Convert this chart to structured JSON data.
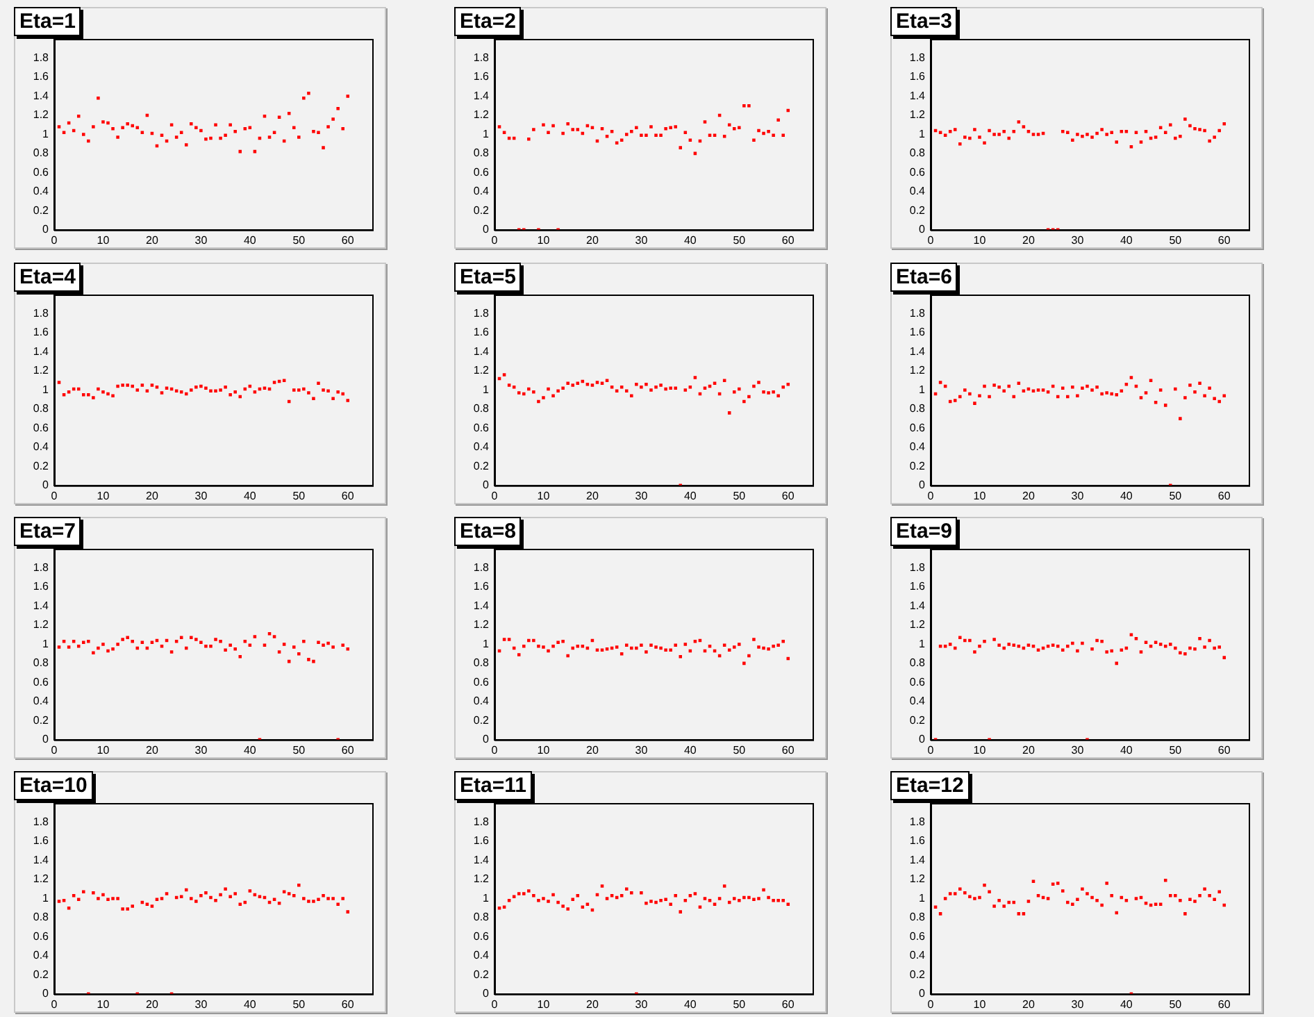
{
  "chart_data": [
    {
      "type": "scatter",
      "title": "Eta=1",
      "color": "#ff0000",
      "marker": "square",
      "grid": false,
      "xlim": [
        0,
        65
      ],
      "ylim": [
        0,
        2
      ],
      "xticks": [
        0,
        10,
        20,
        30,
        40,
        50,
        60
      ],
      "yticks": [
        0,
        0.2,
        0.4,
        0.6,
        0.8,
        1,
        1.2,
        1.4,
        1.6,
        1.8
      ],
      "x": [
        1,
        2,
        3,
        4,
        5,
        6,
        7,
        8,
        9,
        10,
        11,
        12,
        13,
        14,
        15,
        16,
        17,
        18,
        19,
        20,
        21,
        22,
        23,
        24,
        25,
        26,
        27,
        28,
        29,
        30,
        31,
        32,
        33,
        34,
        35,
        36,
        37,
        38,
        39,
        40,
        41,
        42,
        43,
        44,
        45,
        46,
        47,
        48,
        49,
        50,
        51,
        52,
        53,
        54,
        55,
        56,
        57,
        58,
        59,
        60
      ],
      "values": [
        1.08,
        1.02,
        1.12,
        1.04,
        1.19,
        1.0,
        0.93,
        1.08,
        1.38,
        1.13,
        1.12,
        1.06,
        0.97,
        1.07,
        1.11,
        1.09,
        1.07,
        1.02,
        1.2,
        1.01,
        0.88,
        0.99,
        0.93,
        1.1,
        0.97,
        1.02,
        0.89,
        1.11,
        1.07,
        1.04,
        0.95,
        0.96,
        1.1,
        0.96,
        0.99,
        1.1,
        1.03,
        0.82,
        1.06,
        1.07,
        0.82,
        0.96,
        1.19,
        0.97,
        1.02,
        1.18,
        0.93,
        1.22,
        1.07,
        0.97,
        1.38,
        1.43,
        1.03,
        1.02,
        0.86,
        1.08,
        1.16,
        1.27,
        1.06,
        1.4
      ]
    },
    {
      "type": "scatter",
      "title": "Eta=2",
      "color": "#ff0000",
      "marker": "square",
      "grid": false,
      "xlim": [
        0,
        65
      ],
      "ylim": [
        0,
        2
      ],
      "xticks": [
        0,
        10,
        20,
        30,
        40,
        50,
        60
      ],
      "yticks": [
        0,
        0.2,
        0.4,
        0.6,
        0.8,
        1,
        1.2,
        1.4,
        1.6,
        1.8
      ],
      "x": [
        1,
        2,
        3,
        4,
        5,
        6,
        7,
        8,
        9,
        10,
        11,
        12,
        13,
        14,
        15,
        16,
        17,
        18,
        19,
        20,
        21,
        22,
        23,
        24,
        25,
        26,
        27,
        28,
        29,
        30,
        31,
        32,
        33,
        34,
        35,
        36,
        37,
        38,
        39,
        40,
        41,
        42,
        43,
        44,
        45,
        46,
        47,
        48,
        49,
        50,
        51,
        52,
        53,
        54,
        55,
        56,
        57,
        58,
        59,
        60
      ],
      "values": [
        1.08,
        1.02,
        0.96,
        0.96,
        0,
        0,
        0.95,
        1.05,
        0,
        1.1,
        1.02,
        1.09,
        0,
        1.01,
        1.11,
        1.05,
        1.05,
        1.01,
        1.09,
        1.07,
        0.93,
        1.06,
        0.98,
        1.03,
        0.91,
        0.94,
        1.0,
        1.03,
        1.07,
        0.99,
        0.99,
        1.08,
        0.99,
        0.99,
        1.06,
        1.07,
        1.08,
        0.86,
        1.02,
        0.94,
        0.8,
        0.93,
        1.13,
        0.99,
        0.99,
        1.2,
        0.98,
        1.1,
        1.06,
        1.07,
        1.3,
        1.3,
        0.94,
        1.04,
        1.01,
        1.03,
        0.99,
        1.15,
        0.99,
        1.25
      ]
    },
    {
      "type": "scatter",
      "title": "Eta=3",
      "color": "#ff0000",
      "marker": "square",
      "grid": false,
      "xlim": [
        0,
        65
      ],
      "ylim": [
        0,
        2
      ],
      "xticks": [
        0,
        10,
        20,
        30,
        40,
        50,
        60
      ],
      "yticks": [
        0,
        0.2,
        0.4,
        0.6,
        0.8,
        1,
        1.2,
        1.4,
        1.6,
        1.8
      ],
      "x": [
        1,
        2,
        3,
        4,
        5,
        6,
        7,
        8,
        9,
        10,
        11,
        12,
        13,
        14,
        15,
        16,
        17,
        18,
        19,
        20,
        21,
        22,
        23,
        24,
        25,
        26,
        27,
        28,
        29,
        30,
        31,
        32,
        33,
        34,
        35,
        36,
        37,
        38,
        39,
        40,
        41,
        42,
        43,
        44,
        45,
        46,
        47,
        48,
        49,
        50,
        51,
        52,
        53,
        54,
        55,
        56,
        57,
        58,
        59,
        60
      ],
      "values": [
        1.04,
        1.02,
        0.99,
        1.03,
        1.05,
        0.9,
        0.97,
        0.96,
        1.05,
        0.97,
        0.91,
        1.04,
        1.0,
        1.0,
        1.03,
        0.96,
        1.03,
        1.13,
        1.08,
        1.03,
        1.0,
        1.0,
        1.01,
        0,
        0,
        0,
        1.03,
        1.02,
        0.94,
        1.0,
        0.98,
        1.0,
        0.97,
        1.01,
        1.05,
        1.0,
        1.02,
        0.92,
        1.03,
        1.03,
        0.87,
        1.02,
        0.92,
        1.03,
        0.96,
        0.97,
        1.07,
        1.02,
        1.1,
        0.96,
        0.98,
        1.16,
        1.09,
        1.06,
        1.05,
        1.04,
        0.93,
        0.97,
        1.04,
        1.11
      ]
    },
    {
      "type": "scatter",
      "title": "Eta=4",
      "color": "#ff0000",
      "marker": "square",
      "grid": false,
      "xlim": [
        0,
        65
      ],
      "ylim": [
        0,
        2
      ],
      "xticks": [
        0,
        10,
        20,
        30,
        40,
        50,
        60
      ],
      "yticks": [
        0,
        0.2,
        0.4,
        0.6,
        0.8,
        1,
        1.2,
        1.4,
        1.6,
        1.8
      ],
      "x": [
        1,
        2,
        3,
        4,
        5,
        6,
        7,
        8,
        9,
        10,
        11,
        12,
        13,
        14,
        15,
        16,
        17,
        18,
        19,
        20,
        21,
        22,
        23,
        24,
        25,
        26,
        27,
        28,
        29,
        30,
        31,
        32,
        33,
        34,
        35,
        36,
        37,
        38,
        39,
        40,
        41,
        42,
        43,
        44,
        45,
        46,
        47,
        48,
        49,
        50,
        51,
        52,
        53,
        54,
        55,
        56,
        57,
        58,
        59,
        60
      ],
      "values": [
        1.08,
        0.95,
        0.98,
        1.01,
        1.01,
        0.95,
        0.95,
        0.92,
        1.01,
        0.98,
        0.96,
        0.94,
        1.04,
        1.05,
        1.05,
        1.04,
        1.0,
        1.05,
        0.99,
        1.05,
        1.03,
        0.97,
        1.02,
        1.01,
        0.99,
        0.98,
        0.96,
        1.0,
        1.03,
        1.04,
        1.02,
        0.99,
        0.99,
        1.0,
        1.03,
        0.95,
        0.98,
        0.93,
        1.01,
        1.04,
        0.98,
        1.01,
        1.02,
        1.01,
        1.08,
        1.09,
        1.1,
        0.88,
        1.0,
        1.0,
        1.01,
        0.97,
        0.91,
        1.07,
        1.0,
        0.99,
        0.91,
        0.98,
        0.96,
        0.89
      ]
    },
    {
      "type": "scatter",
      "title": "Eta=5",
      "color": "#ff0000",
      "marker": "square",
      "grid": false,
      "xlim": [
        0,
        65
      ],
      "ylim": [
        0,
        2
      ],
      "xticks": [
        0,
        10,
        20,
        30,
        40,
        50,
        60
      ],
      "yticks": [
        0,
        0.2,
        0.4,
        0.6,
        0.8,
        1,
        1.2,
        1.4,
        1.6,
        1.8
      ],
      "x": [
        1,
        2,
        3,
        4,
        5,
        6,
        7,
        8,
        9,
        10,
        11,
        12,
        13,
        14,
        15,
        16,
        17,
        18,
        19,
        20,
        21,
        22,
        23,
        24,
        25,
        26,
        27,
        28,
        29,
        30,
        31,
        32,
        33,
        34,
        35,
        36,
        37,
        38,
        39,
        40,
        41,
        42,
        43,
        44,
        45,
        46,
        47,
        48,
        49,
        50,
        51,
        52,
        53,
        54,
        55,
        56,
        57,
        58,
        59,
        60
      ],
      "values": [
        1.12,
        1.16,
        1.05,
        1.03,
        0.97,
        0.96,
        1.01,
        0.98,
        0.88,
        0.92,
        1.01,
        0.94,
        0.99,
        1.02,
        1.07,
        1.05,
        1.07,
        1.09,
        1.06,
        1.05,
        1.08,
        1.07,
        1.1,
        1.03,
        0.99,
        1.03,
        0.99,
        0.94,
        1.06,
        1.03,
        1.06,
        1.0,
        1.03,
        1.05,
        1.01,
        1.02,
        1.02,
        0,
        1.0,
        1.03,
        1.13,
        0.96,
        1.02,
        1.04,
        1.07,
        0.96,
        1.1,
        0.76,
        0.98,
        1.01,
        0.88,
        0.93,
        1.04,
        1.08,
        0.98,
        0.97,
        0.98,
        0.94,
        1.03,
        1.06
      ]
    },
    {
      "type": "scatter",
      "title": "Eta=6",
      "color": "#ff0000",
      "marker": "square",
      "grid": false,
      "xlim": [
        0,
        65
      ],
      "ylim": [
        0,
        2
      ],
      "xticks": [
        0,
        10,
        20,
        30,
        40,
        50,
        60
      ],
      "yticks": [
        0,
        0.2,
        0.4,
        0.6,
        0.8,
        1,
        1.2,
        1.4,
        1.6,
        1.8
      ],
      "x": [
        1,
        2,
        3,
        4,
        5,
        6,
        7,
        8,
        9,
        10,
        11,
        12,
        13,
        14,
        15,
        16,
        17,
        18,
        19,
        20,
        21,
        22,
        23,
        24,
        25,
        26,
        27,
        28,
        29,
        30,
        31,
        32,
        33,
        34,
        35,
        36,
        37,
        38,
        39,
        40,
        41,
        42,
        43,
        44,
        45,
        46,
        47,
        48,
        49,
        50,
        51,
        52,
        53,
        54,
        55,
        56,
        57,
        58,
        59,
        60
      ],
      "values": [
        0.96,
        1.08,
        1.04,
        0.88,
        0.89,
        0.93,
        1.0,
        0.96,
        0.86,
        0.94,
        1.04,
        0.93,
        1.05,
        1.03,
        0.99,
        1.04,
        0.93,
        1.07,
        0.99,
        1.01,
        0.99,
        1.0,
        1.0,
        0.98,
        1.04,
        0.93,
        1.02,
        0.93,
        1.03,
        0.94,
        1.02,
        1.04,
        1.0,
        1.03,
        0.96,
        0.97,
        0.96,
        0.95,
        0.99,
        1.06,
        1.13,
        1.04,
        0.92,
        0.97,
        1.1,
        0.87,
        1.0,
        0.84,
        0,
        1.01,
        0.7,
        0.92,
        1.05,
        0.98,
        1.07,
        0.94,
        1.02,
        0.91,
        0.88,
        0.94
      ]
    },
    {
      "type": "scatter",
      "title": "Eta=7",
      "color": "#ff0000",
      "marker": "square",
      "grid": false,
      "xlim": [
        0,
        65
      ],
      "ylim": [
        0,
        2
      ],
      "xticks": [
        0,
        10,
        20,
        30,
        40,
        50,
        60
      ],
      "yticks": [
        0,
        0.2,
        0.4,
        0.6,
        0.8,
        1,
        1.2,
        1.4,
        1.6,
        1.8
      ],
      "x": [
        1,
        2,
        3,
        4,
        5,
        6,
        7,
        8,
        9,
        10,
        11,
        12,
        13,
        14,
        15,
        16,
        17,
        18,
        19,
        20,
        21,
        22,
        23,
        24,
        25,
        26,
        27,
        28,
        29,
        30,
        31,
        32,
        33,
        34,
        35,
        36,
        37,
        38,
        39,
        40,
        41,
        42,
        43,
        44,
        45,
        46,
        47,
        48,
        49,
        50,
        51,
        52,
        53,
        54,
        55,
        56,
        57,
        58,
        59,
        60
      ],
      "values": [
        0.97,
        1.03,
        0.97,
        1.03,
        0.98,
        1.02,
        1.03,
        0.91,
        0.96,
        1.0,
        0.93,
        0.95,
        1.0,
        1.05,
        1.07,
        1.03,
        0.96,
        1.02,
        0.96,
        1.02,
        1.04,
        0.98,
        1.04,
        0.92,
        1.03,
        1.07,
        0.96,
        1.07,
        1.05,
        1.02,
        0.98,
        0.98,
        1.05,
        1.03,
        0.94,
        0.99,
        0.95,
        0.87,
        1.03,
        0.99,
        1.08,
        0,
        0.99,
        1.11,
        1.08,
        0.92,
        1.0,
        0.82,
        0.97,
        0.9,
        1.03,
        0.84,
        0.82,
        1.02,
        0.99,
        1.01,
        0.97,
        0,
        0.99,
        0.95
      ]
    },
    {
      "type": "scatter",
      "title": "Eta=8",
      "color": "#ff0000",
      "marker": "square",
      "grid": false,
      "xlim": [
        0,
        65
      ],
      "ylim": [
        0,
        2
      ],
      "xticks": [
        0,
        10,
        20,
        30,
        40,
        50,
        60
      ],
      "yticks": [
        0,
        0.2,
        0.4,
        0.6,
        0.8,
        1,
        1.2,
        1.4,
        1.6,
        1.8
      ],
      "x": [
        1,
        2,
        3,
        4,
        5,
        6,
        7,
        8,
        9,
        10,
        11,
        12,
        13,
        14,
        15,
        16,
        17,
        18,
        19,
        20,
        21,
        22,
        23,
        24,
        25,
        26,
        27,
        28,
        29,
        30,
        31,
        32,
        33,
        34,
        35,
        36,
        37,
        38,
        39,
        40,
        41,
        42,
        43,
        44,
        45,
        46,
        47,
        48,
        49,
        50,
        51,
        52,
        53,
        54,
        55,
        56,
        57,
        58,
        59,
        60
      ],
      "values": [
        0.93,
        1.05,
        1.05,
        0.96,
        0.89,
        0.98,
        1.04,
        1.04,
        0.98,
        0.97,
        0.93,
        0.98,
        1.02,
        1.03,
        0.88,
        0.96,
        0.98,
        0.98,
        0.96,
        1.04,
        0.94,
        0.94,
        0.95,
        0.96,
        0.97,
        0.9,
        0.99,
        0.96,
        0.96,
        0.99,
        0.92,
        0.99,
        0.97,
        0.96,
        0.94,
        0.94,
        0.99,
        0.87,
        1.0,
        0.93,
        1.03,
        1.04,
        0.93,
        0.98,
        0.93,
        0.88,
        0.99,
        0.94,
        0.97,
        1.0,
        0.8,
        0.88,
        1.05,
        0.97,
        0.96,
        0.95,
        0.98,
        0.99,
        1.03,
        0.85
      ]
    },
    {
      "type": "scatter",
      "title": "Eta=9",
      "color": "#ff0000",
      "marker": "square",
      "grid": false,
      "xlim": [
        0,
        65
      ],
      "ylim": [
        0,
        2
      ],
      "xticks": [
        0,
        10,
        20,
        30,
        40,
        50,
        60
      ],
      "yticks": [
        0,
        0.2,
        0.4,
        0.6,
        0.8,
        1,
        1.2,
        1.4,
        1.6,
        1.8
      ],
      "x": [
        1,
        2,
        3,
        4,
        5,
        6,
        7,
        8,
        9,
        10,
        11,
        12,
        13,
        14,
        15,
        16,
        17,
        18,
        19,
        20,
        21,
        22,
        23,
        24,
        25,
        26,
        27,
        28,
        29,
        30,
        31,
        32,
        33,
        34,
        35,
        36,
        37,
        38,
        39,
        40,
        41,
        42,
        43,
        44,
        45,
        46,
        47,
        48,
        49,
        50,
        51,
        52,
        53,
        54,
        55,
        56,
        57,
        58,
        59,
        60
      ],
      "values": [
        0,
        0.98,
        0.98,
        1.0,
        0.96,
        1.07,
        1.04,
        1.04,
        0.92,
        0.98,
        1.03,
        0,
        1.05,
        0.99,
        0.96,
        1.0,
        0.99,
        0.98,
        0.96,
        0.99,
        0.98,
        0.94,
        0.96,
        0.98,
        0.99,
        0.98,
        0.94,
        0.98,
        1.01,
        0.93,
        1.01,
        0,
        0.95,
        1.04,
        1.03,
        0.92,
        0.93,
        0.8,
        0.94,
        0.96,
        1.1,
        1.06,
        0.92,
        1.02,
        0.98,
        1.02,
        1.0,
        0.98,
        1.0,
        0.96,
        0.91,
        0.9,
        0.96,
        0.95,
        1.06,
        0.97,
        1.04,
        0.96,
        0.97,
        0.86
      ]
    },
    {
      "type": "scatter",
      "title": "Eta=10",
      "color": "#ff0000",
      "marker": "square",
      "grid": false,
      "xlim": [
        0,
        65
      ],
      "ylim": [
        0,
        2
      ],
      "xticks": [
        0,
        10,
        20,
        30,
        40,
        50,
        60
      ],
      "yticks": [
        0,
        0.2,
        0.4,
        0.6,
        0.8,
        1,
        1.2,
        1.4,
        1.6,
        1.8
      ],
      "x": [
        1,
        2,
        3,
        4,
        5,
        6,
        7,
        8,
        9,
        10,
        11,
        12,
        13,
        14,
        15,
        16,
        17,
        18,
        19,
        20,
        21,
        22,
        23,
        24,
        25,
        26,
        27,
        28,
        29,
        30,
        31,
        32,
        33,
        34,
        35,
        36,
        37,
        38,
        39,
        40,
        41,
        42,
        43,
        44,
        45,
        46,
        47,
        48,
        49,
        50,
        51,
        52,
        53,
        54,
        55,
        56,
        57,
        58,
        59,
        60
      ],
      "values": [
        0.97,
        0.98,
        0.9,
        1.03,
        0.99,
        1.07,
        0,
        1.06,
        1.0,
        1.04,
        0.99,
        1.0,
        1.0,
        0.89,
        0.89,
        0.92,
        0,
        0.96,
        0.94,
        0.92,
        0.99,
        1.0,
        1.05,
        0,
        1.01,
        1.02,
        1.09,
        1.0,
        0.97,
        1.03,
        1.06,
        1.01,
        0.98,
        1.04,
        1.1,
        1.02,
        1.05,
        0.94,
        0.96,
        1.08,
        1.04,
        1.02,
        1.01,
        0.96,
        0.99,
        0.95,
        1.07,
        1.05,
        1.03,
        1.14,
        1.0,
        0.97,
        0.97,
        0.99,
        1.03,
        1.0,
        1.0,
        0.94,
        1.0,
        0.86
      ]
    },
    {
      "type": "scatter",
      "title": "Eta=11",
      "color": "#ff0000",
      "marker": "square",
      "grid": false,
      "xlim": [
        0,
        65
      ],
      "ylim": [
        0,
        2
      ],
      "xticks": [
        0,
        10,
        20,
        30,
        40,
        50,
        60
      ],
      "yticks": [
        0,
        0.2,
        0.4,
        0.6,
        0.8,
        1,
        1.2,
        1.4,
        1.6,
        1.8
      ],
      "x": [
        1,
        2,
        3,
        4,
        5,
        6,
        7,
        8,
        9,
        10,
        11,
        12,
        13,
        14,
        15,
        16,
        17,
        18,
        19,
        20,
        21,
        22,
        23,
        24,
        25,
        26,
        27,
        28,
        29,
        30,
        31,
        32,
        33,
        34,
        35,
        36,
        37,
        38,
        39,
        40,
        41,
        42,
        43,
        44,
        45,
        46,
        47,
        48,
        49,
        50,
        51,
        52,
        53,
        54,
        55,
        56,
        57,
        58,
        59,
        60
      ],
      "values": [
        0.9,
        0.91,
        0.98,
        1.02,
        1.05,
        1.05,
        1.08,
        1.03,
        0.98,
        1.0,
        0.97,
        1.04,
        0.96,
        0.92,
        0.89,
        0.99,
        1.03,
        0.91,
        0.94,
        0.88,
        1.04,
        1.13,
        1.0,
        1.03,
        1.01,
        1.03,
        1.1,
        1.06,
        0,
        1.06,
        0.95,
        0.97,
        0.96,
        0.98,
        0.99,
        0.94,
        1.03,
        0.86,
        0.98,
        1.03,
        1.05,
        0.91,
        1.0,
        0.98,
        0.94,
        1.0,
        1.13,
        0.96,
        1.0,
        0.98,
        1.01,
        1.01,
        0.99,
        1.0,
        1.09,
        1.01,
        0.98,
        0.98,
        0.98,
        0.94
      ]
    },
    {
      "type": "scatter",
      "title": "Eta=12",
      "color": "#ff0000",
      "marker": "square",
      "grid": false,
      "xlim": [
        0,
        65
      ],
      "ylim": [
        0,
        2
      ],
      "xticks": [
        0,
        10,
        20,
        30,
        40,
        50,
        60
      ],
      "yticks": [
        0,
        0.2,
        0.4,
        0.6,
        0.8,
        1,
        1.2,
        1.4,
        1.6,
        1.8
      ],
      "x": [
        1,
        2,
        3,
        4,
        5,
        6,
        7,
        8,
        9,
        10,
        11,
        12,
        13,
        14,
        15,
        16,
        17,
        18,
        19,
        20,
        21,
        22,
        23,
        24,
        25,
        26,
        27,
        28,
        29,
        30,
        31,
        32,
        33,
        34,
        35,
        36,
        37,
        38,
        39,
        40,
        41,
        42,
        43,
        44,
        45,
        46,
        47,
        48,
        49,
        50,
        51,
        52,
        53,
        54,
        55,
        56,
        57,
        58,
        59,
        60
      ],
      "values": [
        0.91,
        0.84,
        1.0,
        1.05,
        1.05,
        1.1,
        1.06,
        1.02,
        1.0,
        1.01,
        1.14,
        1.07,
        0.92,
        0.98,
        0.92,
        0.96,
        0.96,
        0.84,
        0.84,
        0.97,
        1.18,
        1.03,
        1.01,
        1.0,
        1.15,
        1.16,
        1.08,
        0.96,
        0.94,
        0.99,
        1.1,
        1.05,
        1.01,
        0.98,
        0.93,
        1.16,
        1.03,
        0.85,
        1.01,
        0.98,
        0,
        1.0,
        1.01,
        0.95,
        0.93,
        0.94,
        0.94,
        1.19,
        1.03,
        1.03,
        0.98,
        0.84,
        0.99,
        0.97,
        1.03,
        1.1,
        1.03,
        0.99,
        1.07,
        0.93
      ]
    }
  ]
}
